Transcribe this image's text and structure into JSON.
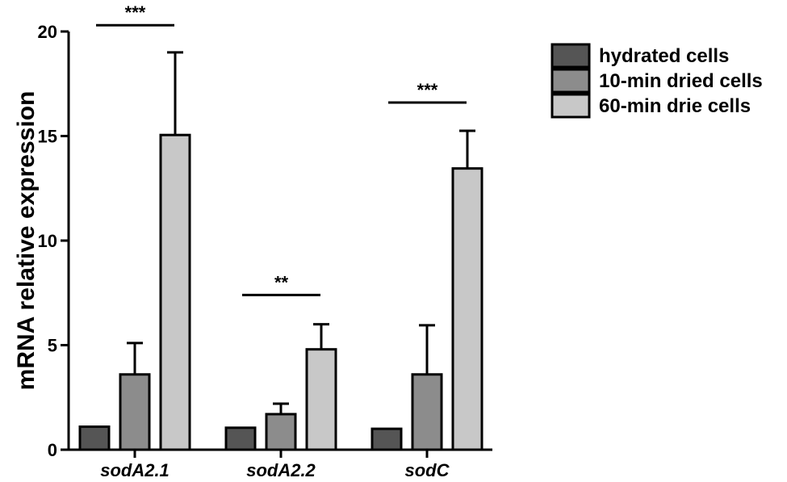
{
  "chart_data": {
    "type": "bar",
    "ylabel": "mRNA relative expression",
    "xlabel": "",
    "ylim": [
      0,
      20
    ],
    "yticks": [
      0,
      5,
      10,
      15,
      20
    ],
    "categories": [
      "sodA2.1",
      "sodA2.2",
      "sodC"
    ],
    "series": [
      {
        "name": "hydrated cells",
        "color": "#555555",
        "values": [
          1.1,
          1.05,
          1.0
        ],
        "errors": [
          0.0,
          0.0,
          0.0
        ]
      },
      {
        "name": "10-min dried cells",
        "color": "#8c8c8c",
        "values": [
          3.6,
          1.7,
          3.6
        ],
        "errors": [
          1.5,
          0.5,
          2.35
        ]
      },
      {
        "name": "60-min drie cells",
        "color": "#c8c8c8",
        "values": [
          15.05,
          4.8,
          13.45
        ],
        "errors": [
          3.95,
          1.2,
          1.8
        ]
      }
    ],
    "significance": [
      {
        "category": "sodA2.1",
        "label": "***",
        "level": 20.3
      },
      {
        "category": "sodA2.2",
        "label": "**",
        "level": 7.4
      },
      {
        "category": "sodC",
        "label": "***",
        "level": 16.6
      }
    ],
    "legend_position": "top-right",
    "grid": false
  }
}
